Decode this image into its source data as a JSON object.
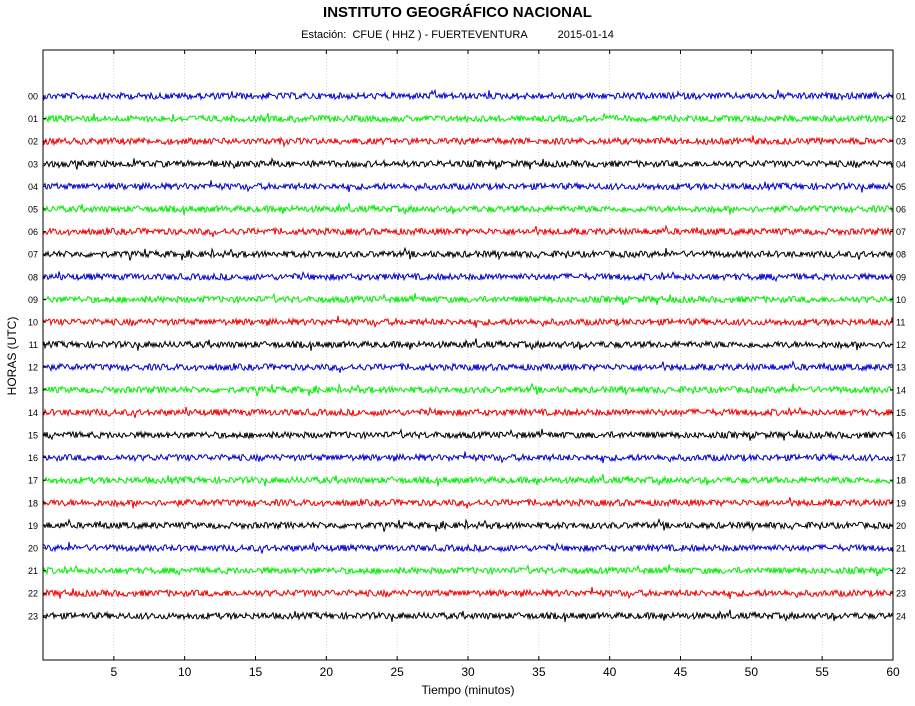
{
  "chart_data": {
    "type": "line",
    "title": "INSTITUTO GEOGRÁFICO NACIONAL",
    "subtitle_station": "Estación:  CFUE ( HHZ ) - FUERTEVENTURA",
    "subtitle_date": "2015-01-14",
    "xlabel": "Tiempo (minutos)",
    "ylabel": "HORAS (UTC)",
    "xlim": [
      0,
      60
    ],
    "x_ticks": [
      5,
      10,
      15,
      20,
      25,
      30,
      35,
      40,
      45,
      50,
      55,
      60
    ],
    "left_tick_labels": [
      "00",
      "01",
      "02",
      "03",
      "04",
      "05",
      "06",
      "07",
      "08",
      "09",
      "10",
      "11",
      "12",
      "13",
      "14",
      "15",
      "16",
      "17",
      "18",
      "19",
      "20",
      "21",
      "22",
      "23"
    ],
    "right_tick_labels": [
      "01",
      "02",
      "03",
      "04",
      "05",
      "06",
      "07",
      "08",
      "09",
      "10",
      "11",
      "12",
      "13",
      "14",
      "15",
      "16",
      "17",
      "18",
      "19",
      "20",
      "21",
      "22",
      "23",
      "24"
    ],
    "grid": "vertical dotted",
    "trace_colors": [
      "#0000cc",
      "#00ee00",
      "#ee0000",
      "#000000"
    ]
  }
}
